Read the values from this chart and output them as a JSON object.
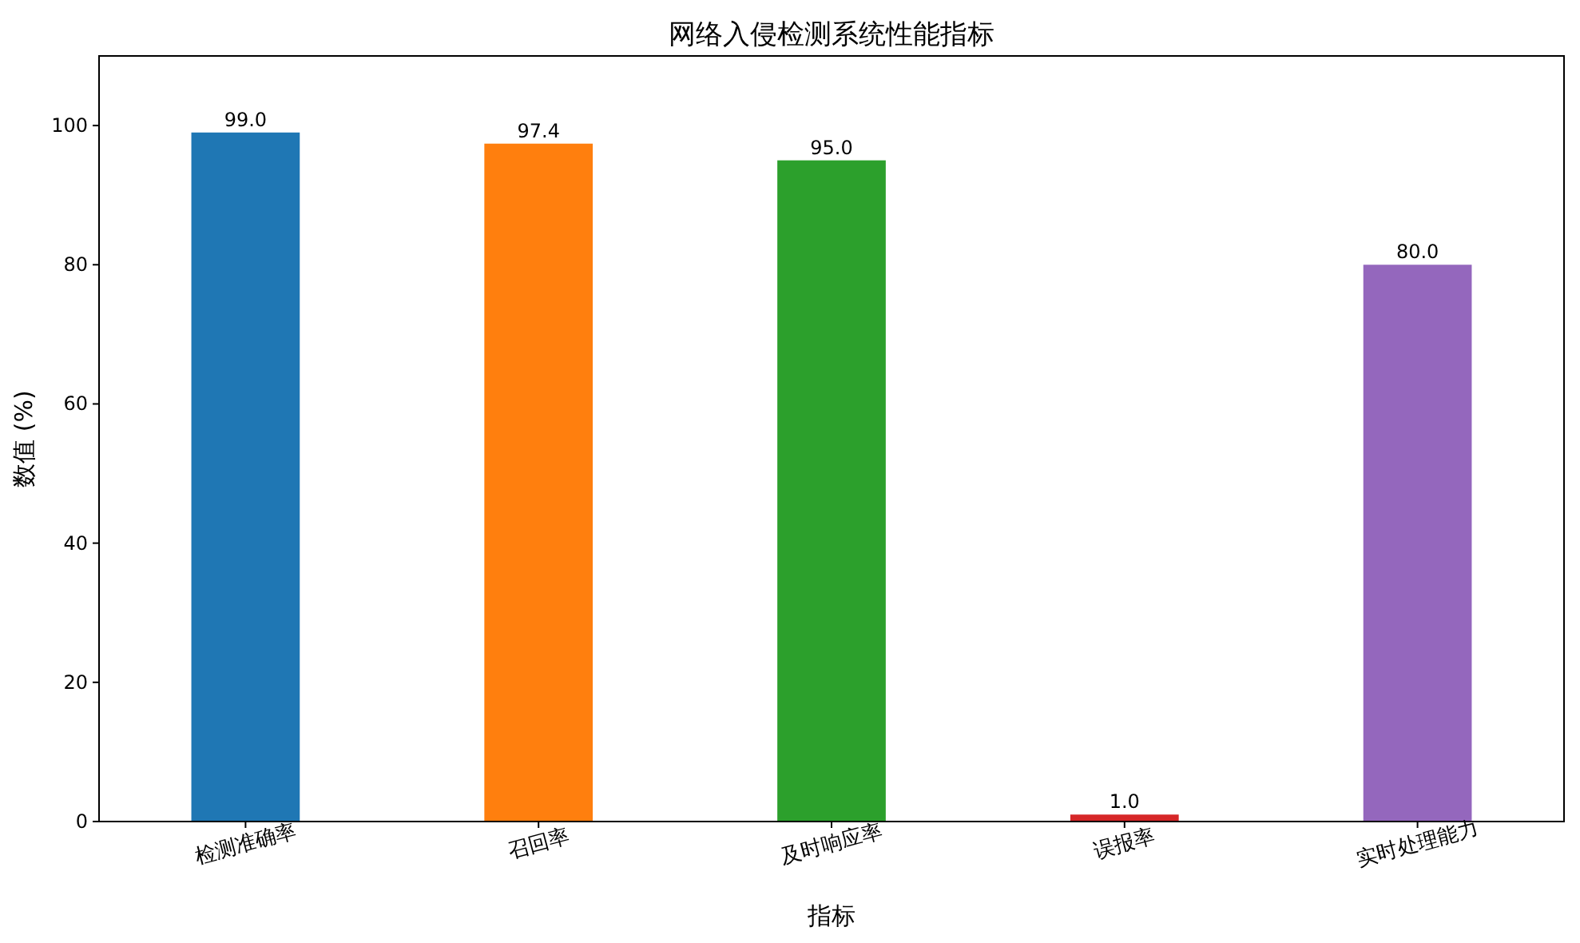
{
  "chart_data": {
    "type": "bar",
    "title": "网络入侵检测系统性能指标",
    "xlabel": "指标",
    "ylabel": "数值 (%)",
    "categories": [
      "检测准确率",
      "召回率",
      "及时响应率",
      "误报率",
      "实时处理能力"
    ],
    "values": [
      99.0,
      97.4,
      95.0,
      1.0,
      80.0
    ],
    "value_labels": [
      "99.0",
      "97.4",
      "95.0",
      "1.0",
      "80.0"
    ],
    "colors": [
      "#1f77b4",
      "#ff7f0e",
      "#2ca02c",
      "#d62728",
      "#9467bd"
    ],
    "ylim": [
      0,
      110
    ],
    "yticks": [
      0,
      20,
      40,
      60,
      80,
      100
    ],
    "grid": false
  }
}
